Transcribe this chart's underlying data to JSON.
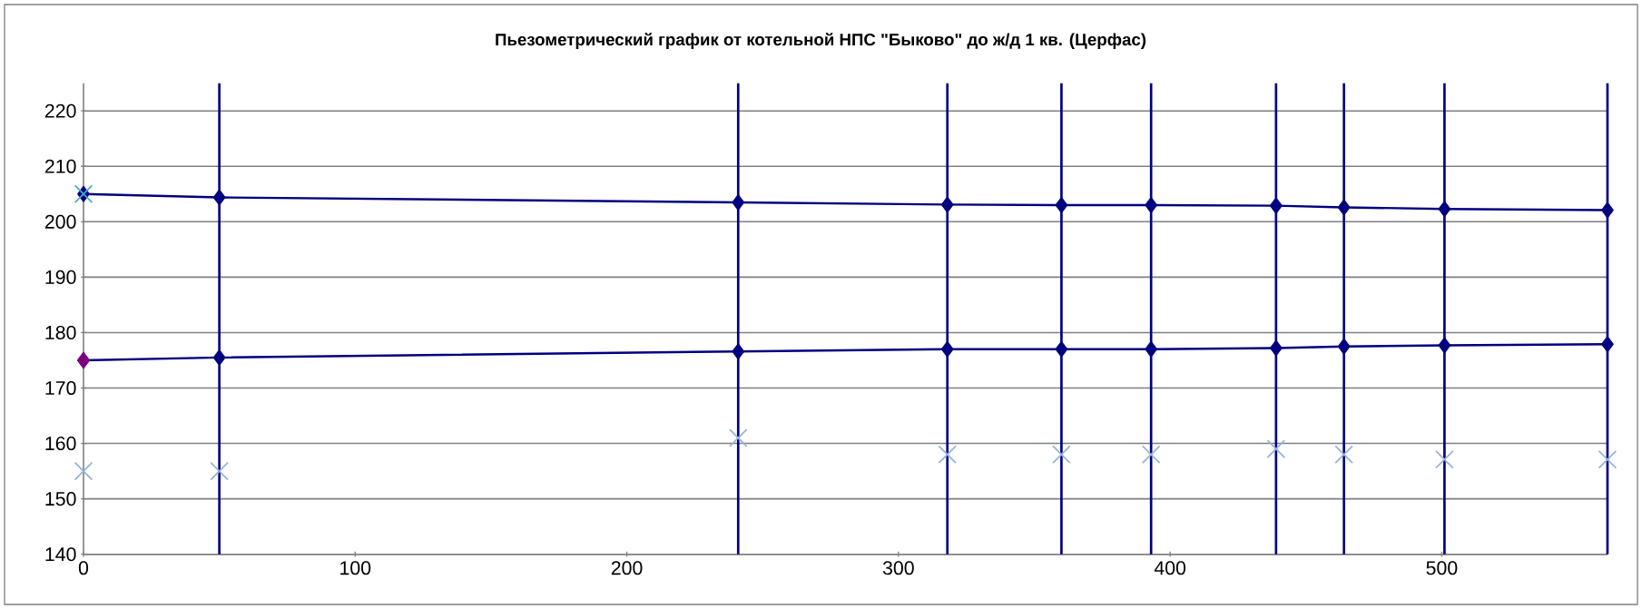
{
  "chart_data": {
    "type": "line",
    "title": "Пьезометрический график от котельной НПС \"Быково\" до ж/д  1 кв. (Церфас)",
    "x": [
      0,
      50,
      241,
      318,
      360,
      393,
      439,
      464,
      501,
      561
    ],
    "series": [
      {
        "color": "#000080",
        "marker": "diamond",
        "values": [
          205,
          204.4,
          203.5,
          203.1,
          203.0,
          203.0,
          202.9,
          202.6,
          202.3,
          202.1
        ]
      },
      {
        "color": "#000080",
        "marker": "diamond",
        "values": [
          175,
          175.5,
          176.6,
          177.0,
          177.0,
          177.0,
          177.2,
          177.5,
          177.7,
          177.9
        ]
      },
      {
        "type": "scatter",
        "color": "#95b3d7",
        "marker": "cross",
        "values": [
          155,
          155,
          161,
          158,
          158,
          158,
          159,
          158,
          157.1,
          157.1
        ]
      },
      {
        "type": "scatter",
        "color": "#4bacc6",
        "marker": "cross",
        "x": [
          0
        ],
        "values": [
          205
        ]
      },
      {
        "type": "scatter",
        "color": "#7f007f",
        "marker": "diamond",
        "x": [
          0
        ],
        "values": [
          175
        ]
      }
    ],
    "ref_lines": [
      {
        "axis": "x",
        "value": 50,
        "color": "#000080"
      },
      {
        "axis": "x",
        "value": 241,
        "color": "#000080"
      },
      {
        "axis": "x",
        "value": 318,
        "color": "#000080"
      },
      {
        "axis": "x",
        "value": 360,
        "color": "#000080"
      },
      {
        "axis": "x",
        "value": 393,
        "color": "#000080"
      },
      {
        "axis": "x",
        "value": 439,
        "color": "#000080"
      },
      {
        "axis": "x",
        "value": 464,
        "color": "#000080"
      },
      {
        "axis": "x",
        "value": 501,
        "color": "#000080"
      },
      {
        "axis": "x",
        "value": 561,
        "color": "#000080"
      }
    ],
    "xlim": [
      0,
      561
    ],
    "xticks": [
      0,
      100,
      200,
      300,
      400,
      500
    ],
    "ylim": [
      140,
      225
    ],
    "yticks": [
      140,
      150,
      160,
      170,
      180,
      190,
      200,
      210,
      220
    ],
    "grid": "y"
  }
}
